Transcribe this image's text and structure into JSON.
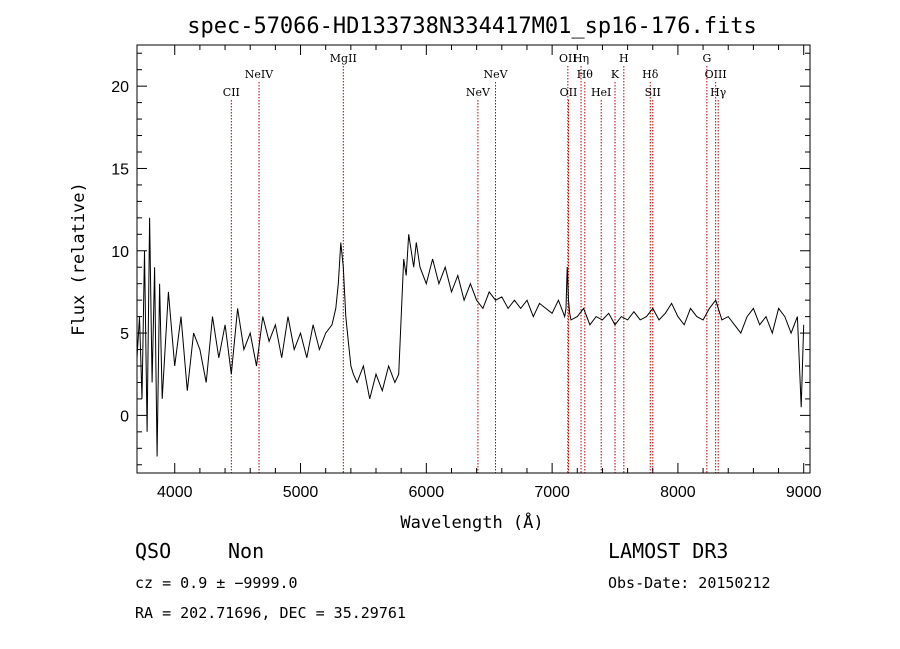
{
  "chart_data": {
    "type": "line",
    "title": "spec-57066-HD133738N334417M01_sp16-176.fits",
    "xlabel": "Wavelength (Å)",
    "ylabel": "Flux (relative)",
    "xlim": [
      3700,
      9050
    ],
    "ylim": [
      -3.5,
      22.5
    ],
    "xticks": [
      4000,
      5000,
      6000,
      7000,
      8000,
      9000
    ],
    "yticks": [
      0,
      5,
      10,
      15,
      20
    ],
    "grid": false,
    "series": [
      {
        "x": [
          3700,
          3720,
          3740,
          3760,
          3780,
          3800,
          3820,
          3840,
          3860,
          3880,
          3900,
          3950,
          4000,
          4050,
          4100,
          4150,
          4200,
          4250,
          4300,
          4350,
          4400,
          4450,
          4500,
          4550,
          4600,
          4650,
          4700,
          4750,
          4800,
          4850,
          4900,
          4950,
          5000,
          5050,
          5100,
          5150,
          5200,
          5250,
          5280,
          5300,
          5320,
          5340,
          5360,
          5380,
          5400,
          5420,
          5450,
          5500,
          5550,
          5600,
          5650,
          5700,
          5750,
          5780,
          5800,
          5820,
          5840,
          5860,
          5880,
          5900,
          5920,
          5950,
          6000,
          6050,
          6100,
          6150,
          6200,
          6250,
          6300,
          6350,
          6400,
          6450,
          6500,
          6550,
          6600,
          6650,
          6700,
          6750,
          6800,
          6850,
          6900,
          6950,
          7000,
          7050,
          7100,
          7110,
          7120,
          7130,
          7140,
          7150,
          7200,
          7250,
          7300,
          7350,
          7400,
          7450,
          7500,
          7550,
          7600,
          7650,
          7700,
          7750,
          7800,
          7850,
          7900,
          7950,
          8000,
          8050,
          8100,
          8150,
          8200,
          8250,
          8300,
          8350,
          8400,
          8450,
          8500,
          8550,
          8600,
          8650,
          8700,
          8750,
          8800,
          8850,
          8900,
          8950,
          8980,
          9000
        ],
        "y": [
          3.5,
          6.0,
          1.0,
          10.0,
          -1.0,
          12.0,
          2.0,
          9.0,
          -2.5,
          8.0,
          1.0,
          7.5,
          3.0,
          6.0,
          1.5,
          5.0,
          4.0,
          2.0,
          6.0,
          3.5,
          5.5,
          2.5,
          6.5,
          4.0,
          5.0,
          3.0,
          6.0,
          4.5,
          5.5,
          3.5,
          6.0,
          4.0,
          5.0,
          3.5,
          5.5,
          4.0,
          5.0,
          5.5,
          6.5,
          8.0,
          10.5,
          9.0,
          6.0,
          4.5,
          3.0,
          2.5,
          2.0,
          3.0,
          1.0,
          2.5,
          1.5,
          3.0,
          2.0,
          2.5,
          6.0,
          9.5,
          8.5,
          11.0,
          10.0,
          9.0,
          10.5,
          9.0,
          8.0,
          9.5,
          8.0,
          9.0,
          7.5,
          8.5,
          7.0,
          8.0,
          7.0,
          6.5,
          7.5,
          7.0,
          7.2,
          6.5,
          7.0,
          6.5,
          7.0,
          6.0,
          6.8,
          6.5,
          6.2,
          7.0,
          6.0,
          6.5,
          9.0,
          7.0,
          6.2,
          5.8,
          6.0,
          6.5,
          5.5,
          6.0,
          5.8,
          6.2,
          5.5,
          6.0,
          5.8,
          6.3,
          5.8,
          6.0,
          6.5,
          5.8,
          6.2,
          6.8,
          6.0,
          5.5,
          6.5,
          6.0,
          5.8,
          6.5,
          7.0,
          5.8,
          6.0,
          5.5,
          5.0,
          6.0,
          6.5,
          5.5,
          6.0,
          5.0,
          6.5,
          6.0,
          5.0,
          6.0,
          0.5,
          5.5
        ]
      }
    ],
    "line_markers": [
      {
        "label": "CII",
        "x": 4450,
        "row": 3
      },
      {
        "label": "NeIV",
        "x": 4670,
        "row": 2
      },
      {
        "label": "MgII",
        "x": 5340,
        "row": 1
      },
      {
        "label": "NeV",
        "x": 6410,
        "row": 3
      },
      {
        "label": "NeV",
        "x": 6550,
        "row": 2
      },
      {
        "label": "OII",
        "x": 7125,
        "row": 1
      },
      {
        "label": "OII",
        "x": 7130,
        "row": 3
      },
      {
        "label": "Hη",
        "x": 7230,
        "row": 1
      },
      {
        "label": "Hθ",
        "x": 7260,
        "row": 2
      },
      {
        "label": "HeI",
        "x": 7390,
        "row": 3
      },
      {
        "label": "K",
        "x": 7500,
        "row": 2
      },
      {
        "label": "H",
        "x": 7570,
        "row": 1
      },
      {
        "label": "Hδ",
        "x": 7780,
        "row": 2
      },
      {
        "label": "SII",
        "x": 7800,
        "row": 3
      },
      {
        "label": "G",
        "x": 8230,
        "row": 1
      },
      {
        "label": "OIII",
        "x": 8300,
        "row": 2
      },
      {
        "label": "Hγ",
        "x": 8320,
        "row": 3
      }
    ],
    "marker_color": "#c00000"
  },
  "info": {
    "class": "QSO",
    "subclass": "Non",
    "survey": "LAMOST DR3",
    "cz": "cz = 0.9 ± −9999.0",
    "obs_date": "Obs-Date: 20150212",
    "coords": "RA = 202.71696, DEC =  35.29761"
  }
}
